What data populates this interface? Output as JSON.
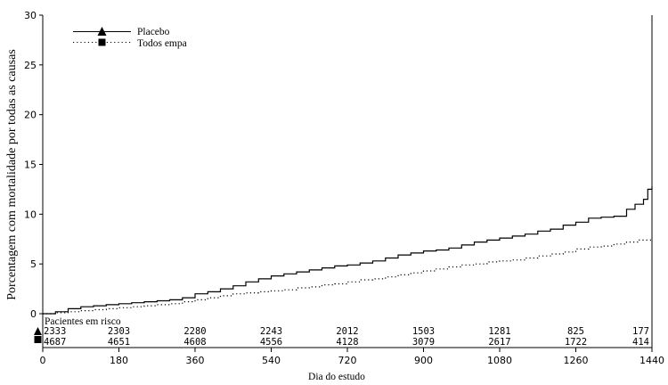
{
  "chart_data": {
    "type": "line",
    "title": "",
    "xlabel": "Dia do estudo",
    "ylabel": "Porcentagem com mortalidade por todas as causas",
    "xlim": [
      0,
      1440
    ],
    "ylim": [
      0,
      30
    ],
    "x_ticks": [
      "0",
      "180",
      "360",
      "540",
      "720",
      "900",
      "1080",
      "1260",
      "1440"
    ],
    "y_ticks": [
      "0",
      "5",
      "10",
      "15",
      "20",
      "25",
      "30"
    ],
    "grid": false,
    "legend_position": "top-left",
    "series": [
      {
        "name": "Placebo",
        "style": "solid",
        "marker": "triangle",
        "color": "#000000",
        "x": [
          0,
          30,
          60,
          90,
          120,
          150,
          180,
          210,
          240,
          270,
          300,
          330,
          360,
          390,
          420,
          450,
          480,
          510,
          540,
          570,
          600,
          630,
          660,
          690,
          720,
          750,
          780,
          810,
          840,
          870,
          900,
          930,
          960,
          990,
          1020,
          1050,
          1080,
          1110,
          1140,
          1170,
          1200,
          1230,
          1260,
          1290,
          1320,
          1350,
          1380,
          1400,
          1420,
          1430,
          1440
        ],
        "y": [
          0,
          0.2,
          0.5,
          0.7,
          0.8,
          0.9,
          1.0,
          1.1,
          1.2,
          1.3,
          1.4,
          1.6,
          2.0,
          2.2,
          2.5,
          2.8,
          3.2,
          3.5,
          3.8,
          4.0,
          4.2,
          4.4,
          4.6,
          4.8,
          4.9,
          5.1,
          5.3,
          5.6,
          5.9,
          6.1,
          6.3,
          6.4,
          6.6,
          6.9,
          7.2,
          7.4,
          7.6,
          7.8,
          8.0,
          8.3,
          8.5,
          8.9,
          9.2,
          9.6,
          9.7,
          9.8,
          10.5,
          11.0,
          11.5,
          12.5,
          12.8
        ]
      },
      {
        "name": "Todos empa",
        "style": "dotted",
        "marker": "square",
        "color": "#000000",
        "x": [
          0,
          30,
          60,
          90,
          120,
          150,
          180,
          210,
          240,
          270,
          300,
          330,
          360,
          390,
          420,
          450,
          480,
          510,
          540,
          570,
          600,
          630,
          660,
          690,
          720,
          750,
          780,
          810,
          840,
          870,
          900,
          930,
          960,
          990,
          1020,
          1050,
          1080,
          1110,
          1140,
          1170,
          1200,
          1230,
          1260,
          1290,
          1320,
          1350,
          1380,
          1410,
          1440
        ],
        "y": [
          0,
          0.1,
          0.2,
          0.3,
          0.4,
          0.5,
          0.6,
          0.7,
          0.8,
          0.9,
          1.0,
          1.2,
          1.4,
          1.6,
          1.8,
          2.0,
          2.1,
          2.2,
          2.3,
          2.4,
          2.6,
          2.7,
          2.9,
          3.0,
          3.2,
          3.4,
          3.5,
          3.7,
          3.9,
          4.1,
          4.3,
          4.5,
          4.7,
          4.9,
          5.0,
          5.2,
          5.3,
          5.4,
          5.6,
          5.8,
          6.0,
          6.2,
          6.5,
          6.7,
          6.8,
          7.0,
          7.2,
          7.4,
          7.6
        ]
      }
    ],
    "at_risk": {
      "label": "Pacientes em risco",
      "x": [
        0,
        180,
        360,
        540,
        720,
        900,
        1080,
        1260,
        1440
      ],
      "rows": [
        {
          "series": "Placebo",
          "marker": "triangle",
          "values": [
            "2333",
            "2303",
            "2280",
            "2243",
            "2012",
            "1503",
            "1281",
            "825",
            "177"
          ]
        },
        {
          "series": "Todos empa",
          "marker": "square",
          "values": [
            "4687",
            "4651",
            "4608",
            "4556",
            "4128",
            "3079",
            "2617",
            "1722",
            "414"
          ]
        }
      ]
    }
  }
}
